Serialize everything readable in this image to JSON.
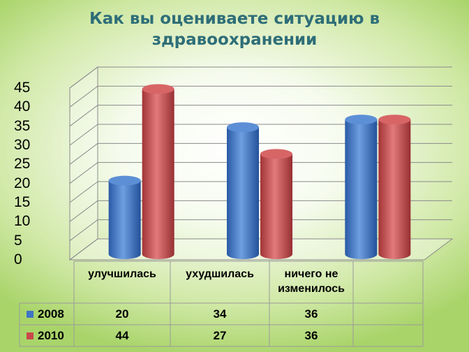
{
  "chart_data": {
    "type": "bar",
    "title": "Как вы оцениваете ситуацию в здравоохранении",
    "title_lines": [
      "Как вы оцениваете ситуацию в",
      "здравоохранении"
    ],
    "categories": [
      "улучшилась",
      "ухудшилась",
      "ничего не изменилось"
    ],
    "category_lines": [
      [
        "улучшилась"
      ],
      [
        "ухудшилась"
      ],
      [
        "ничего не",
        "изменилось"
      ]
    ],
    "series": [
      {
        "name": "2008",
        "values": [
          20,
          34,
          36
        ],
        "color": "#3e74c4"
      },
      {
        "name": "2010",
        "values": [
          44,
          27,
          36
        ],
        "color": "#c8484a"
      }
    ],
    "ylim": [
      0,
      45
    ],
    "yticks": [
      "0",
      "5",
      "10",
      "15",
      "20",
      "25",
      "30",
      "35",
      "40",
      "45"
    ],
    "grid": true,
    "style": "3d-cylinder",
    "legend": "data-table"
  }
}
